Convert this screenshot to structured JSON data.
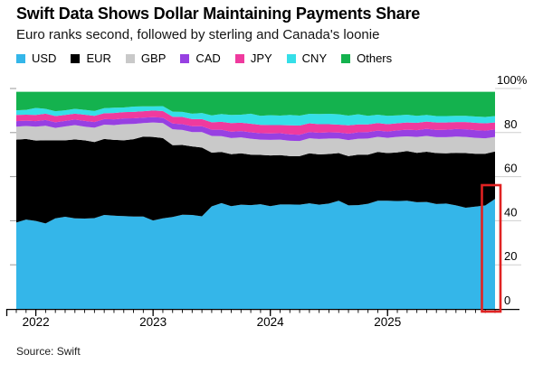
{
  "source": "Source: Swift",
  "chart_data": {
    "type": "area",
    "stacked": true,
    "title": "Swift Data Shows Dollar Maintaining Payments Share",
    "subtitle": "Euro ranks second, followed by sterling and Canada's loonie",
    "unit": "percent share of global payments",
    "x_start": "2021-11",
    "x_interval": "month",
    "n_points": 50,
    "ylim": [
      0,
      100
    ],
    "grid": "right tick stubs only",
    "legend_position": "top",
    "x_tick_labels": [
      {
        "label": "2022",
        "index": 2
      },
      {
        "label": "2023",
        "index": 14
      },
      {
        "label": "2024",
        "index": 26
      },
      {
        "label": "2025",
        "index": 38
      }
    ],
    "y_ticks": [
      {
        "value": 100,
        "label": "100%"
      },
      {
        "value": 80,
        "label": "80"
      },
      {
        "value": 60,
        "label": "60"
      },
      {
        "value": 40,
        "label": "40"
      },
      {
        "value": 20,
        "label": "20"
      },
      {
        "value": 0,
        "label": "0"
      }
    ],
    "series": [
      {
        "name": "USD",
        "color": "#34B6E9",
        "values": [
          39.2,
          40.5,
          39.9,
          38.8,
          41.1,
          41.8,
          41.1,
          41.0,
          41.2,
          42.6,
          42.3,
          42.1,
          41.9,
          41.9,
          40.1,
          41.1,
          41.7,
          42.7,
          42.6,
          42.0,
          46.5,
          48.0,
          46.6,
          47.3,
          47.1,
          47.5,
          46.6,
          47.4,
          47.4,
          47.3,
          47.9,
          47.3,
          47.8,
          49.1,
          47.0,
          47.1,
          47.7,
          49.1,
          49.1,
          48.9,
          49.1,
          48.4,
          48.5,
          47.6,
          47.8,
          47.0,
          45.9,
          46.4,
          46.9,
          49.9
        ]
      },
      {
        "name": "EUR",
        "color": "#000000",
        "values": [
          37.6,
          36.6,
          36.5,
          37.7,
          35.4,
          34.7,
          35.8,
          35.5,
          34.5,
          34.5,
          34.4,
          34.4,
          35.1,
          36.3,
          37.9,
          36.4,
          32.6,
          31.7,
          31.1,
          31.2,
          24.4,
          23.2,
          23.6,
          23.3,
          22.9,
          22.4,
          23.0,
          22.4,
          21.9,
          22.0,
          22.7,
          22.8,
          22.5,
          21.6,
          22.3,
          22.9,
          22.3,
          22.1,
          21.6,
          22.1,
          22.5,
          22.4,
          22.8,
          23.1,
          22.8,
          23.8,
          24.8,
          24.0,
          23.5,
          21.5
        ]
      },
      {
        "name": "GBP",
        "color": "#C9C9C9",
        "values": [
          5.9,
          5.9,
          6.3,
          6.6,
          5.6,
          6.3,
          6.5,
          6.2,
          6.5,
          6.5,
          6.7,
          7.3,
          6.9,
          6.1,
          6.6,
          6.8,
          7.2,
          6.8,
          6.5,
          7.0,
          7.6,
          7.2,
          7.3,
          7.2,
          7.2,
          6.9,
          7.1,
          7.0,
          7.0,
          6.9,
          6.8,
          7.0,
          7.0,
          6.6,
          7.3,
          7.2,
          7.3,
          6.9,
          6.9,
          7.1,
          6.7,
          7.2,
          7.2,
          7.2,
          7.3,
          7.4,
          7.3,
          7.2,
          7.0,
          6.6
        ]
      },
      {
        "name": "CAD",
        "color": "#9740E2",
        "values": [
          2.5,
          2.4,
          2.5,
          2.6,
          2.6,
          2.5,
          2.5,
          2.6,
          2.6,
          2.5,
          2.6,
          2.6,
          2.6,
          2.5,
          2.4,
          2.5,
          2.6,
          2.6,
          2.7,
          2.7,
          2.8,
          2.9,
          2.9,
          2.9,
          2.9,
          2.9,
          2.9,
          2.9,
          2.9,
          2.8,
          2.8,
          2.8,
          2.8,
          2.7,
          2.9,
          2.9,
          2.9,
          2.8,
          2.9,
          2.9,
          3.0,
          3.1,
          3.2,
          3.3,
          3.4,
          3.4,
          3.5,
          3.5,
          3.5,
          3.4
        ]
      },
      {
        "name": "JPY",
        "color": "#EF3A9E",
        "values": [
          2.8,
          2.7,
          2.8,
          2.9,
          2.8,
          2.7,
          2.7,
          2.8,
          2.8,
          2.7,
          2.9,
          2.9,
          2.9,
          2.9,
          3.0,
          3.0,
          3.1,
          3.3,
          3.2,
          3.2,
          3.4,
          3.6,
          3.9,
          3.8,
          3.9,
          3.8,
          3.8,
          3.7,
          4.1,
          4.2,
          4.0,
          3.9,
          3.7,
          3.6,
          3.8,
          3.6,
          3.5,
          3.4,
          3.3,
          3.2,
          3.3,
          3.3,
          3.3,
          3.4,
          3.3,
          3.2,
          3.3,
          3.3,
          3.3,
          3.2
        ]
      },
      {
        "name": "CNY",
        "color": "#35DFE8",
        "values": [
          2.1,
          2.2,
          3.2,
          2.2,
          2.2,
          2.1,
          2.2,
          2.2,
          2.2,
          2.3,
          2.4,
          2.1,
          2.4,
          2.2,
          1.9,
          2.2,
          2.3,
          2.3,
          2.5,
          2.8,
          3.1,
          3.5,
          3.7,
          3.6,
          4.6,
          4.1,
          4.5,
          4.3,
          4.7,
          4.5,
          4.3,
          4.6,
          4.7,
          4.7,
          4.4,
          4.6,
          3.9,
          3.8,
          3.8,
          3.6,
          3.5,
          3.2,
          3.0,
          2.9,
          2.9,
          2.8,
          2.8,
          2.9,
          2.9,
          2.9
        ]
      },
      {
        "name": "Others",
        "color": "#14B24E",
        "values": [
          8.4,
          8.2,
          7.3,
          7.7,
          8.8,
          8.4,
          7.7,
          8.2,
          8.7,
          7.4,
          7.2,
          7.1,
          6.7,
          6.6,
          6.6,
          6.5,
          9.0,
          9.1,
          9.9,
          9.6,
          10.7,
          10.1,
          10.5,
          10.4,
          9.9,
          10.9,
          10.6,
          10.8,
          10.5,
          10.8,
          10.0,
          10.1,
          10.0,
          10.2,
          10.8,
          10.2,
          10.9,
          10.4,
          10.9,
          10.7,
          10.4,
          10.9,
          10.5,
          11.0,
          11.0,
          10.9,
          10.9,
          11.2,
          11.4,
          11.0
        ]
      }
    ],
    "annotation": {
      "type": "highlight_box",
      "color": "#E02222",
      "covers": "latest data point (USD share jump)"
    }
  }
}
